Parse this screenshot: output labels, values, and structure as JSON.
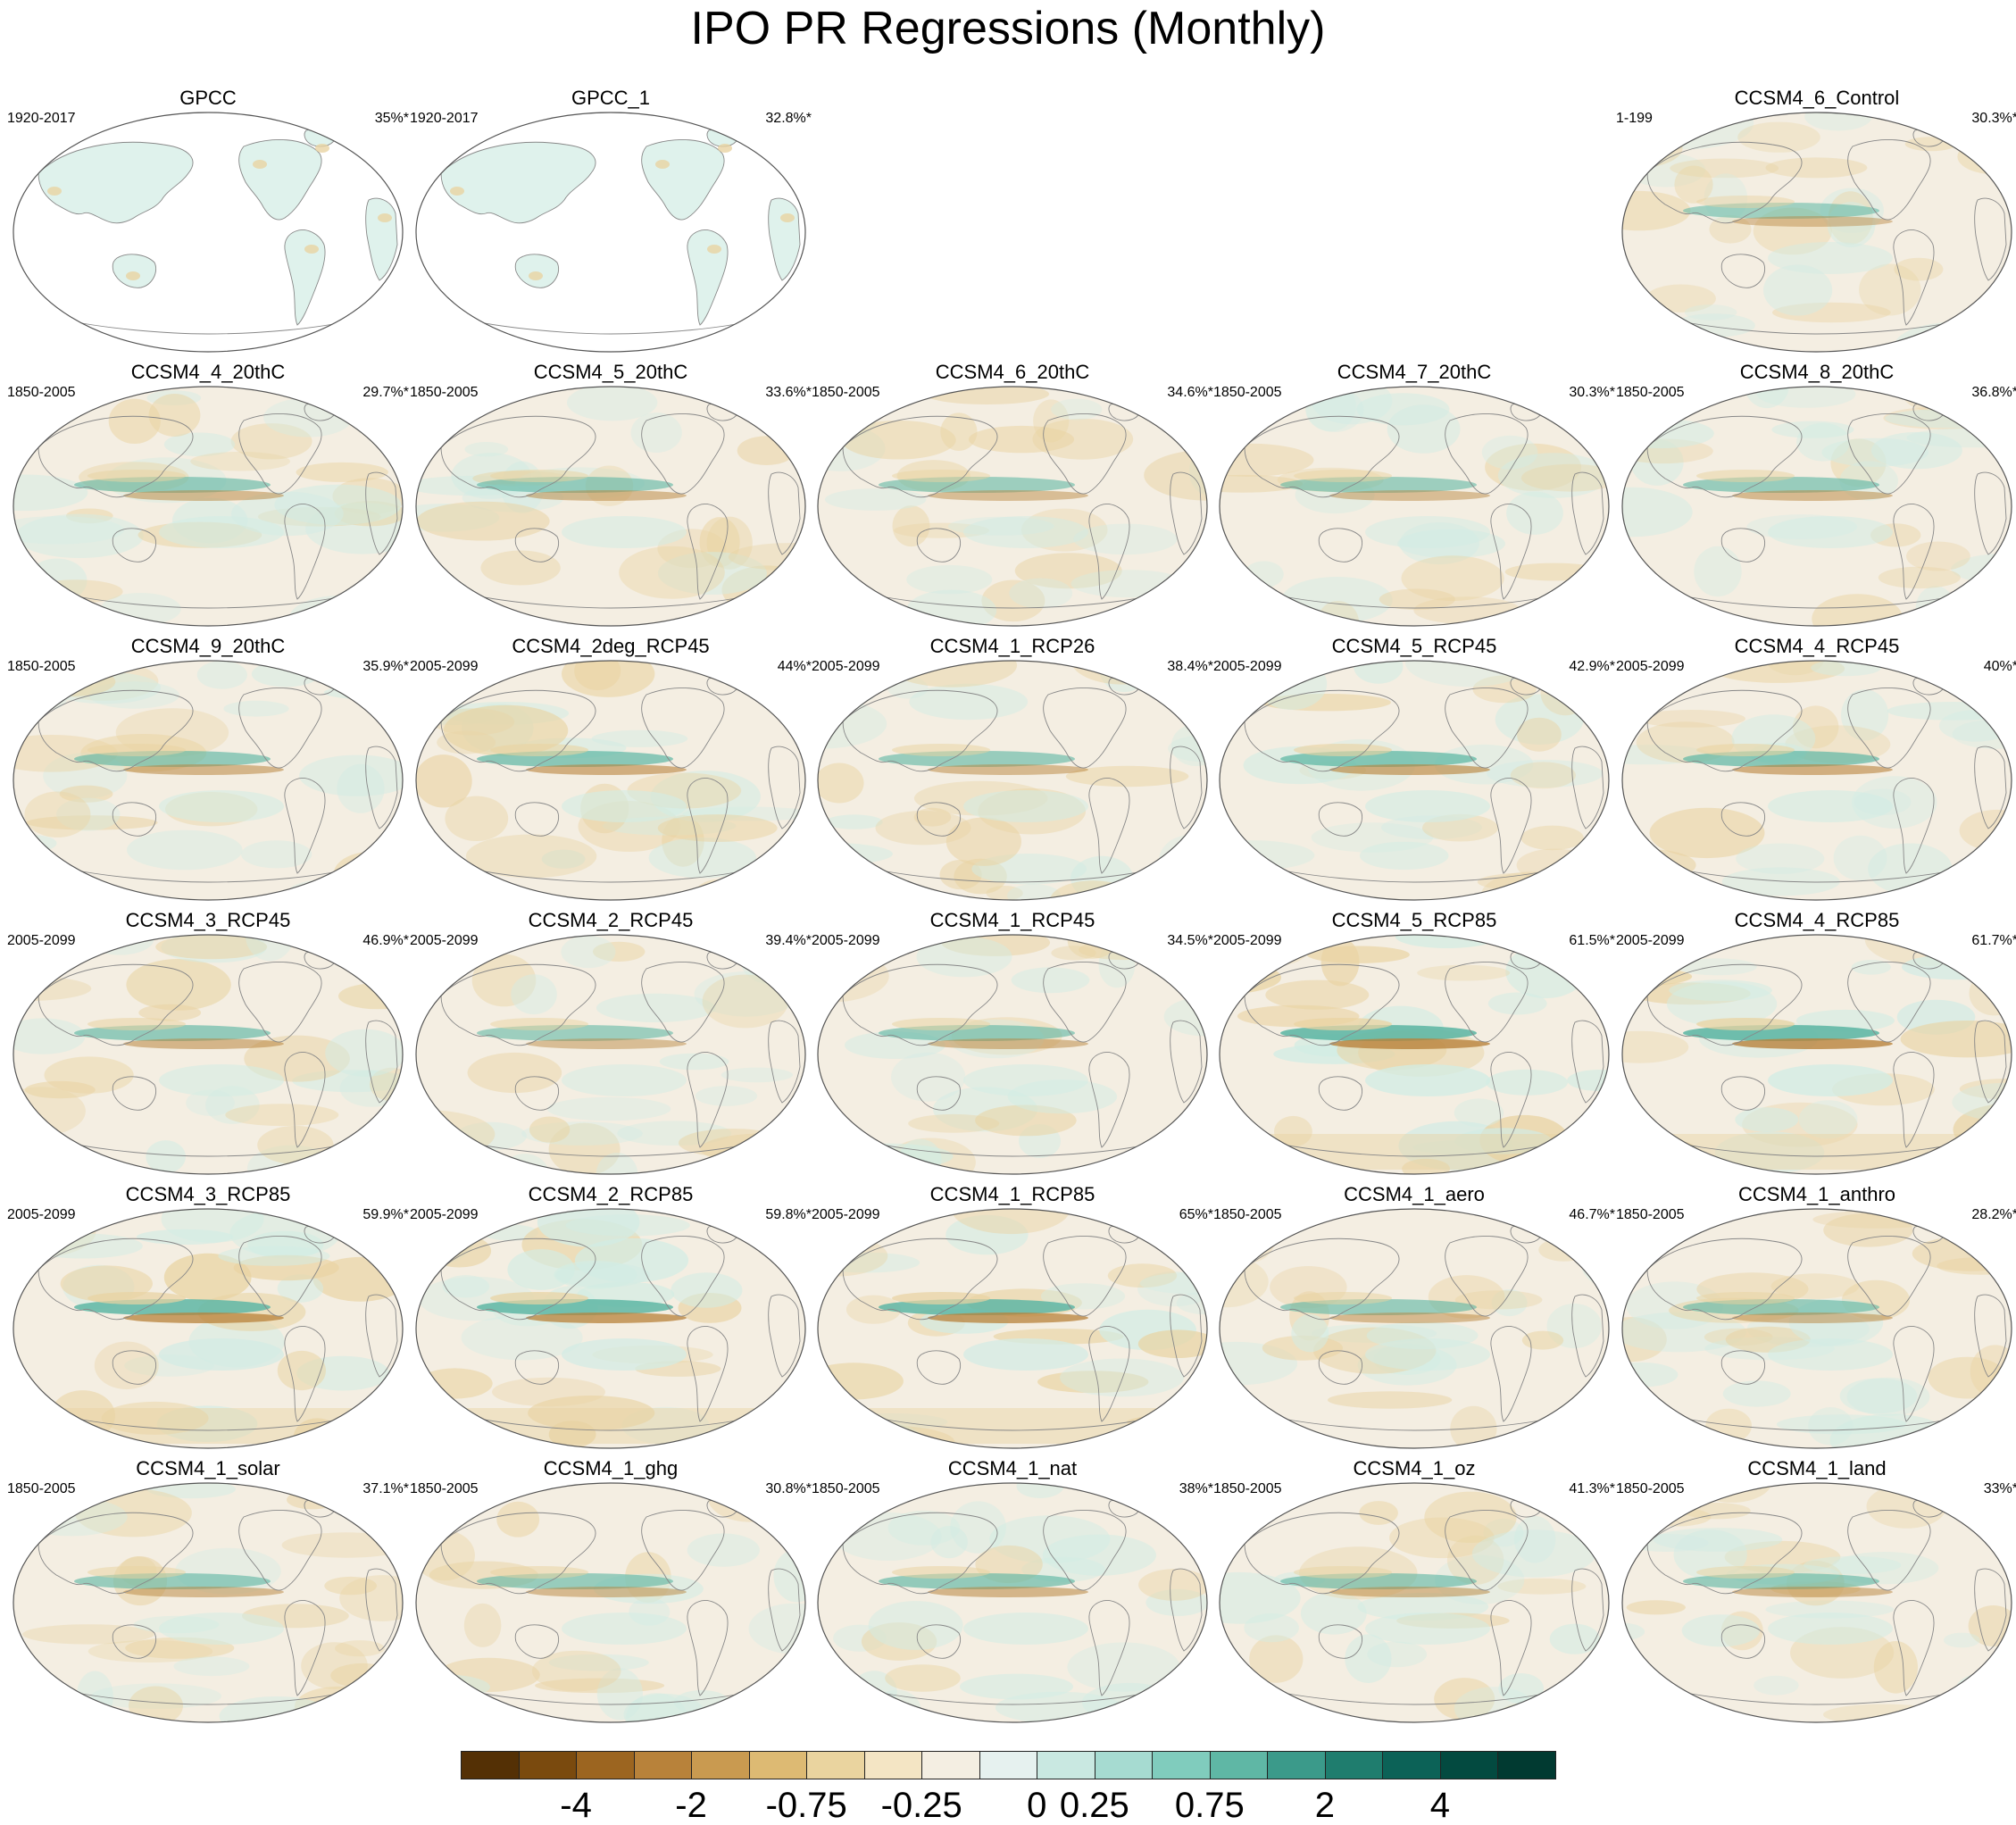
{
  "figure": {
    "title": "IPO PR Regressions (Monthly)",
    "colors": {
      "neutral": "#f4eee2",
      "dry": "#e9d3a2",
      "dry_strong": "#b8823a",
      "wet": "#d2ece4",
      "wet_strong": "#5fb7a5",
      "land_blank": "#ffffff",
      "coast": "#888888",
      "outline": "#555555"
    },
    "panels": [
      {
        "name": "GPCC",
        "years": "1920-2017",
        "pct": "35%*",
        "kind": "obs",
        "intensity": 0.2
      },
      {
        "name": "GPCC_1",
        "years": "1920-2017",
        "pct": "32.8%*",
        "kind": "obs",
        "intensity": 0.2
      },
      null,
      null,
      {
        "name": "CCSM4_6_Control",
        "years": "1-199",
        "pct": "30.3%*",
        "kind": "model",
        "intensity": 0.35
      },
      {
        "name": "CCSM4_4_20thC",
        "years": "1850-2005",
        "pct": "29.7%*",
        "kind": "model",
        "intensity": 0.45
      },
      {
        "name": "CCSM4_5_20thC",
        "years": "1850-2005",
        "pct": "33.6%*",
        "kind": "model",
        "intensity": 0.45
      },
      {
        "name": "CCSM4_6_20thC",
        "years": "1850-2005",
        "pct": "34.6%*",
        "kind": "model",
        "intensity": 0.4
      },
      {
        "name": "CCSM4_7_20thC",
        "years": "1850-2005",
        "pct": "30.3%*",
        "kind": "model",
        "intensity": 0.4
      },
      {
        "name": "CCSM4_8_20thC",
        "years": "1850-2005",
        "pct": "36.8%*",
        "kind": "model",
        "intensity": 0.45
      },
      {
        "name": "CCSM4_9_20thC",
        "years": "1850-2005",
        "pct": "35.9%*",
        "kind": "model",
        "intensity": 0.5
      },
      {
        "name": "CCSM4_2deg_RCP45",
        "years": "2005-2099",
        "pct": "44%*",
        "kind": "model",
        "intensity": 0.6
      },
      {
        "name": "CCSM4_1_RCP26",
        "years": "2005-2099",
        "pct": "38.4%*",
        "kind": "model",
        "intensity": 0.45
      },
      {
        "name": "CCSM4_5_RCP45",
        "years": "2005-2099",
        "pct": "42.9%*",
        "kind": "model",
        "intensity": 0.65
      },
      {
        "name": "CCSM4_4_RCP45",
        "years": "2005-2099",
        "pct": "40%*",
        "kind": "model",
        "intensity": 0.6
      },
      {
        "name": "CCSM4_3_RCP45",
        "years": "2005-2099",
        "pct": "46.9%*",
        "kind": "model",
        "intensity": 0.5
      },
      {
        "name": "CCSM4_2_RCP45",
        "years": "2005-2099",
        "pct": "39.4%*",
        "kind": "model",
        "intensity": 0.4
      },
      {
        "name": "CCSM4_1_RCP45",
        "years": "2005-2099",
        "pct": "34.5%*",
        "kind": "model",
        "intensity": 0.45
      },
      {
        "name": "CCSM4_5_RCP85",
        "years": "2005-2099",
        "pct": "61.5%*",
        "kind": "model",
        "intensity": 0.9
      },
      {
        "name": "CCSM4_4_RCP85",
        "years": "2005-2099",
        "pct": "61.7%*",
        "kind": "model",
        "intensity": 0.9
      },
      {
        "name": "CCSM4_3_RCP85",
        "years": "2005-2099",
        "pct": "59.9%*",
        "kind": "model",
        "intensity": 0.85
      },
      {
        "name": "CCSM4_2_RCP85",
        "years": "2005-2099",
        "pct": "59.8%*",
        "kind": "model",
        "intensity": 0.85
      },
      {
        "name": "CCSM4_1_RCP85",
        "years": "2005-2099",
        "pct": "65%*",
        "kind": "model",
        "intensity": 0.85
      },
      {
        "name": "CCSM4_1_aero",
        "years": "1850-2005",
        "pct": "46.7%*",
        "kind": "model",
        "intensity": 0.45
      },
      {
        "name": "CCSM4_1_anthro",
        "years": "1850-2005",
        "pct": "28.2%*",
        "kind": "model",
        "intensity": 0.45
      },
      {
        "name": "CCSM4_1_solar",
        "years": "1850-2005",
        "pct": "37.1%*",
        "kind": "model",
        "intensity": 0.45
      },
      {
        "name": "CCSM4_1_ghg",
        "years": "1850-2005",
        "pct": "30.8%*",
        "kind": "model",
        "intensity": 0.45
      },
      {
        "name": "CCSM4_1_nat",
        "years": "1850-2005",
        "pct": "38%*",
        "kind": "model",
        "intensity": 0.5
      },
      {
        "name": "CCSM4_1_oz",
        "years": "1850-2005",
        "pct": "41.3%*",
        "kind": "model",
        "intensity": 0.45
      },
      {
        "name": "CCSM4_1_land",
        "years": "1850-2005",
        "pct": "33%*",
        "kind": "model",
        "intensity": 0.45
      }
    ],
    "colorbar": {
      "colors": [
        "#543005",
        "#7a4a0e",
        "#9c6520",
        "#b8823a",
        "#c99a50",
        "#ddba73",
        "#ead49f",
        "#f4e5c4",
        "#f4eee2",
        "#e6f1ef",
        "#c9e8e1",
        "#a6dbd1",
        "#80ccbd",
        "#5fb7a5",
        "#3b9a8a",
        "#1f7d6e",
        "#0c6257",
        "#034a40",
        "#013a31"
      ],
      "tick_labels": [
        "-4",
        "-2",
        "-0.75",
        "-0.25",
        "0",
        "0.25",
        "0.75",
        "2",
        "4"
      ],
      "tick_boundary_index": [
        2,
        4,
        6,
        8,
        10,
        11,
        13,
        15,
        17
      ]
    }
  }
}
